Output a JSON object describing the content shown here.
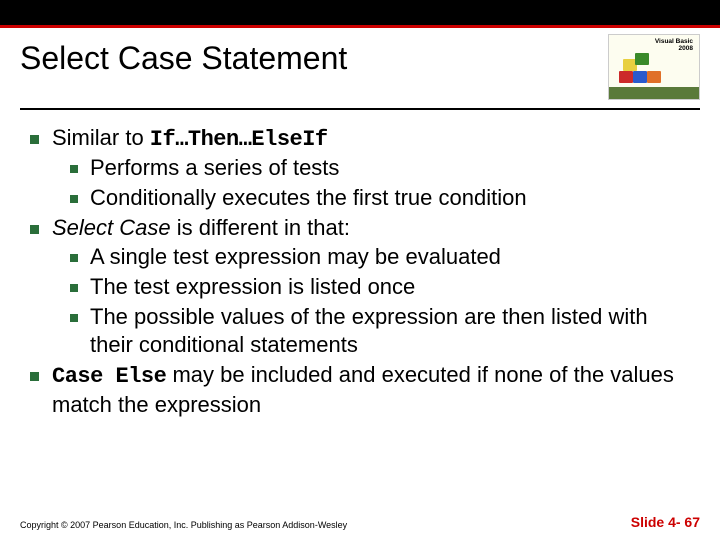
{
  "colors": {
    "accent_red": "#cc0000",
    "bullet_green": "#2a6e3a",
    "black": "#000000",
    "white": "#ffffff"
  },
  "typography": {
    "title_fontsize": 32,
    "body_fontsize": 22,
    "footer_fontsize": 9,
    "slide_num_fontsize": 14
  },
  "logo": {
    "product": "Visual Basic",
    "year": "2008",
    "block_colors": [
      "#e8d040",
      "#3a8a2a",
      "#cc2a2a",
      "#2a5acc",
      "#e07028"
    ],
    "band_color": "#5a7a3a",
    "bg_color": "#fdfdf0"
  },
  "title": "Select Case Statement",
  "bullets": [
    {
      "pre": "Similar to ",
      "code": "If…Then…ElseIf",
      "post": "",
      "children": [
        {
          "text": "Performs a series of tests"
        },
        {
          "text": "Conditionally executes the first true condition"
        }
      ]
    },
    {
      "pre_italic": "Select Case",
      "pre": " is different in that:",
      "children": [
        {
          "text": "A single test expression may be evaluated"
        },
        {
          "text": "The test expression is listed once"
        },
        {
          "text": "The possible values of the expression are then listed with their conditional statements"
        }
      ]
    },
    {
      "code": "Case Else",
      "post": " may be included and executed if none of the values match the expression"
    }
  ],
  "footer": {
    "copyright": "Copyright © 2007 Pearson Education, Inc. Publishing as Pearson Addison-Wesley",
    "slide": "Slide 4- 67"
  }
}
